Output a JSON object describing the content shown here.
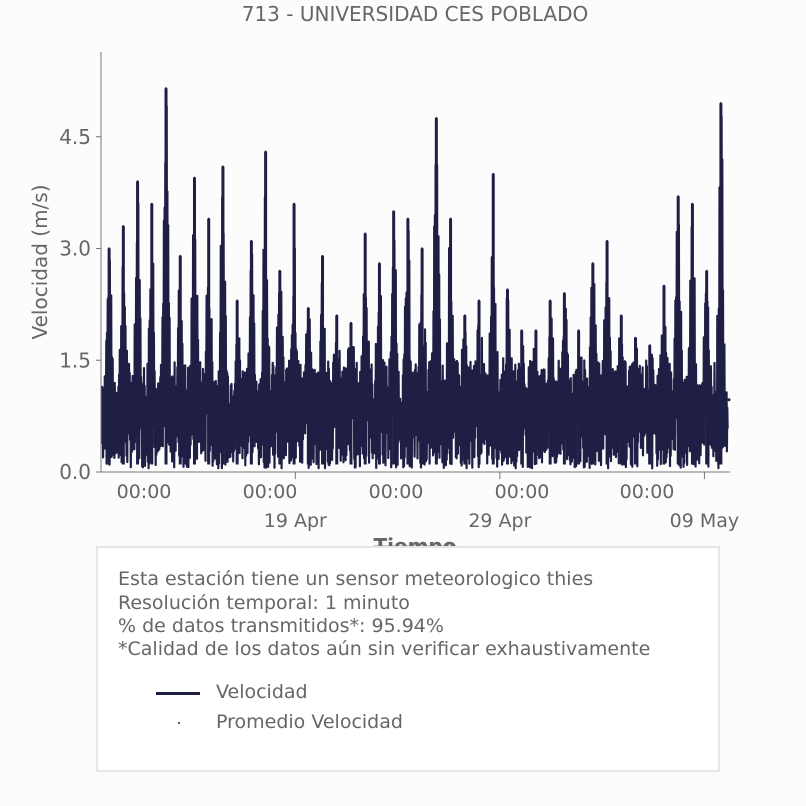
{
  "chart_data": {
    "type": "line",
    "title": "713 - UNIVERSIDAD CES POBLADO",
    "xlabel": "Tiempo",
    "ylabel": "Velocidad (m/s)",
    "ylim": [
      0,
      5.4
    ],
    "yticks": [
      0.0,
      1.5,
      3.0,
      4.5
    ],
    "ytick_labels": [
      "0.0",
      "1.5",
      "3.0",
      "4.5"
    ],
    "xlim": [
      "2019-04-09T12:00",
      "2019-05-10T06:00"
    ],
    "xticks_major": [
      {
        "t": "2019-04-19T00:00",
        "label": "19 Apr"
      },
      {
        "t": "2019-04-29T00:00",
        "label": "29 Apr"
      },
      {
        "t": "2019-05-09T00:00",
        "label": "09 May"
      }
    ],
    "xticks_minor": [
      {
        "t": "2019-04-13T00:00",
        "label": "00:00"
      },
      {
        "t": "2019-04-23T00:00",
        "label": "00:00"
      },
      {
        "t": "2019-05-03T00:00",
        "label": "00:00"
      },
      {
        "t": "2019-05-13T00:00",
        "label": "00:00"
      },
      {
        "t": "2019-05-23T00:00",
        "label": "00:00"
      }
    ],
    "grid": false,
    "series": [
      {
        "name": "Velocidad",
        "color": "#1f1f45",
        "daily_peaks": [
          {
            "t": "2019-04-10T15:00",
            "y": 3.0
          },
          {
            "t": "2019-04-11T15:00",
            "y": 3.3
          },
          {
            "t": "2019-04-12T15:00",
            "y": 3.9
          },
          {
            "t": "2019-04-13T15:00",
            "y": 3.6
          },
          {
            "t": "2019-04-14T15:00",
            "y": 5.15
          },
          {
            "t": "2019-04-15T15:00",
            "y": 2.9
          },
          {
            "t": "2019-04-16T15:00",
            "y": 3.95
          },
          {
            "t": "2019-04-17T15:00",
            "y": 3.4
          },
          {
            "t": "2019-04-18T15:00",
            "y": 4.1
          },
          {
            "t": "2019-04-19T15:00",
            "y": 2.3
          },
          {
            "t": "2019-04-20T15:00",
            "y": 3.1
          },
          {
            "t": "2019-04-21T15:00",
            "y": 4.3
          },
          {
            "t": "2019-04-22T15:00",
            "y": 2.7
          },
          {
            "t": "2019-04-23T15:00",
            "y": 3.6
          },
          {
            "t": "2019-04-24T15:00",
            "y": 2.2
          },
          {
            "t": "2019-04-25T15:00",
            "y": 2.9
          },
          {
            "t": "2019-04-26T15:00",
            "y": 2.1
          },
          {
            "t": "2019-04-27T15:00",
            "y": 2.0
          },
          {
            "t": "2019-04-28T15:00",
            "y": 3.2
          },
          {
            "t": "2019-04-29T15:00",
            "y": 2.8
          },
          {
            "t": "2019-04-30T15:00",
            "y": 3.5
          },
          {
            "t": "2019-05-01T15:00",
            "y": 3.4
          },
          {
            "t": "2019-05-02T15:00",
            "y": 3.0
          },
          {
            "t": "2019-05-03T15:00",
            "y": 4.75
          },
          {
            "t": "2019-05-04T15:00",
            "y": 3.4
          },
          {
            "t": "2019-05-05T15:00",
            "y": 2.1
          },
          {
            "t": "2019-05-06T15:00",
            "y": 2.3
          },
          {
            "t": "2019-05-07T15:00",
            "y": 4.0
          },
          {
            "t": "2019-05-08T15:00",
            "y": 2.45
          },
          {
            "t": "2019-05-09T15:00",
            "y": 1.9
          },
          {
            "t": "2019-05-10T15:00",
            "y": 1.9
          },
          {
            "t": "2019-05-11T15:00",
            "y": 2.3
          },
          {
            "t": "2019-05-12T15:00",
            "y": 2.4
          },
          {
            "t": "2019-05-13T15:00",
            "y": 1.9
          },
          {
            "t": "2019-05-14T15:00",
            "y": 2.8
          },
          {
            "t": "2019-05-15T15:00",
            "y": 3.1
          },
          {
            "t": "2019-05-16T15:00",
            "y": 2.1
          },
          {
            "t": "2019-05-17T15:00",
            "y": 1.8
          },
          {
            "t": "2019-05-18T15:00",
            "y": 1.7
          },
          {
            "t": "2019-05-19T15:00",
            "y": 2.5
          },
          {
            "t": "2019-05-20T15:00",
            "y": 3.7
          },
          {
            "t": "2019-05-21T15:00",
            "y": 3.6
          },
          {
            "t": "2019-05-22T15:00",
            "y": 2.7
          },
          {
            "t": "2019-05-23T15:00",
            "y": 4.95
          }
        ],
        "daily_baseline": 0.05,
        "typical_level": 1.0
      },
      {
        "name": "Promedio Velocidad",
        "color": "#1f1f45",
        "marker": "point",
        "values_note": "",
        "last_value": 0.97
      }
    ]
  },
  "info": {
    "line1": "Esta estación tiene un sensor meteorologico thies",
    "line2": "Resolución temporal: 1 minuto",
    "line3": "% de datos transmitidos*: 95.94%",
    "line4": "*Calidad de los datos aún sin verificar exhaustivamente"
  },
  "legend": {
    "item1": "Velocidad",
    "item2": "Promedio Velocidad"
  },
  "colors": {
    "line": "#1f1f45",
    "text": "#666666",
    "axis": "#777777"
  }
}
